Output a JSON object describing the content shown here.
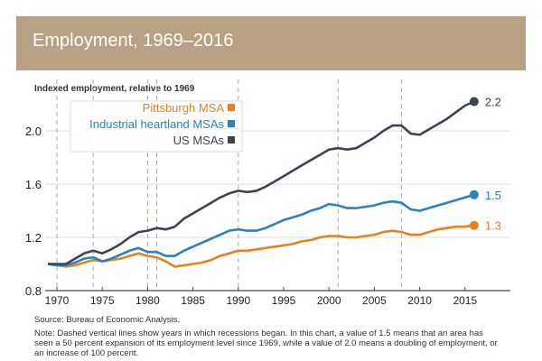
{
  "chart_data": {
    "type": "line",
    "title": "Employment, 1969–2016",
    "ylabel": "Indexed employment, relative to 1969",
    "xlabel": "",
    "xlim": [
      1969,
      2016
    ],
    "ylim": [
      0.8,
      2.3
    ],
    "yticks": [
      0.8,
      1.2,
      1.6,
      2.0
    ],
    "ytick_labels": [
      "0.8",
      "1.2",
      "1.6",
      "2.0"
    ],
    "xticks": [
      1970,
      1975,
      1980,
      1985,
      1990,
      1995,
      2000,
      2005,
      2010,
      2015
    ],
    "xtick_labels": [
      "1970",
      "1975",
      "1980",
      "1985",
      "1990",
      "1995",
      "2000",
      "2005",
      "2010",
      "2015"
    ],
    "grid": "horizontal",
    "legend_placement": "top-left",
    "recession_years": [
      1970,
      1974,
      1980,
      1981,
      1990,
      2001,
      2008
    ],
    "x": [
      1969,
      1970,
      1971,
      1972,
      1973,
      1974,
      1975,
      1976,
      1977,
      1978,
      1979,
      1980,
      1981,
      1982,
      1983,
      1984,
      1985,
      1986,
      1987,
      1988,
      1989,
      1990,
      1991,
      1992,
      1993,
      1994,
      1995,
      1996,
      1997,
      1998,
      1999,
      2000,
      2001,
      2002,
      2003,
      2004,
      2005,
      2006,
      2007,
      2008,
      2009,
      2010,
      2011,
      2012,
      2013,
      2014,
      2015,
      2016
    ],
    "series": [
      {
        "name": "Pittsburgh MSA",
        "color": "#e8801e",
        "end_label": "1.3",
        "values": [
          1.0,
          0.99,
          0.98,
          0.99,
          1.01,
          1.03,
          1.02,
          1.03,
          1.04,
          1.06,
          1.08,
          1.06,
          1.05,
          1.02,
          0.98,
          0.99,
          1.0,
          1.01,
          1.03,
          1.06,
          1.08,
          1.1,
          1.1,
          1.11,
          1.12,
          1.13,
          1.14,
          1.15,
          1.17,
          1.18,
          1.2,
          1.21,
          1.21,
          1.2,
          1.2,
          1.21,
          1.22,
          1.24,
          1.25,
          1.24,
          1.22,
          1.22,
          1.24,
          1.26,
          1.27,
          1.28,
          1.28,
          1.29
        ]
      },
      {
        "name": "Industrial heartland MSAs",
        "color": "#2b82bd",
        "end_label": "1.5",
        "values": [
          1.0,
          0.99,
          0.99,
          1.01,
          1.04,
          1.05,
          1.02,
          1.04,
          1.07,
          1.1,
          1.12,
          1.09,
          1.09,
          1.06,
          1.06,
          1.1,
          1.13,
          1.16,
          1.19,
          1.22,
          1.25,
          1.26,
          1.25,
          1.25,
          1.27,
          1.3,
          1.33,
          1.35,
          1.37,
          1.4,
          1.42,
          1.45,
          1.44,
          1.42,
          1.42,
          1.43,
          1.44,
          1.46,
          1.47,
          1.46,
          1.41,
          1.4,
          1.42,
          1.44,
          1.46,
          1.48,
          1.5,
          1.52
        ]
      },
      {
        "name": "US MSAs",
        "color": "#3d4451",
        "end_label": "2.2",
        "values": [
          1.0,
          1.0,
          1.0,
          1.04,
          1.08,
          1.1,
          1.08,
          1.11,
          1.15,
          1.2,
          1.24,
          1.25,
          1.27,
          1.26,
          1.28,
          1.34,
          1.38,
          1.42,
          1.46,
          1.5,
          1.53,
          1.55,
          1.54,
          1.55,
          1.58,
          1.62,
          1.66,
          1.7,
          1.74,
          1.78,
          1.82,
          1.86,
          1.87,
          1.86,
          1.87,
          1.91,
          1.95,
          2.0,
          2.04,
          2.04,
          1.98,
          1.97,
          2.01,
          2.05,
          2.09,
          2.14,
          2.19,
          2.22
        ]
      }
    ]
  },
  "source": "Source: Bureau of Economic Analysis.",
  "note": "Note: Dashed vertical lines show years in which recessions began. In this chart, a value of 1.5 means that an area has seen a 50 percent expansion of its employment level since 1969, while a value of 2.0 means a doubling of employment, or an increase of 100 percent."
}
